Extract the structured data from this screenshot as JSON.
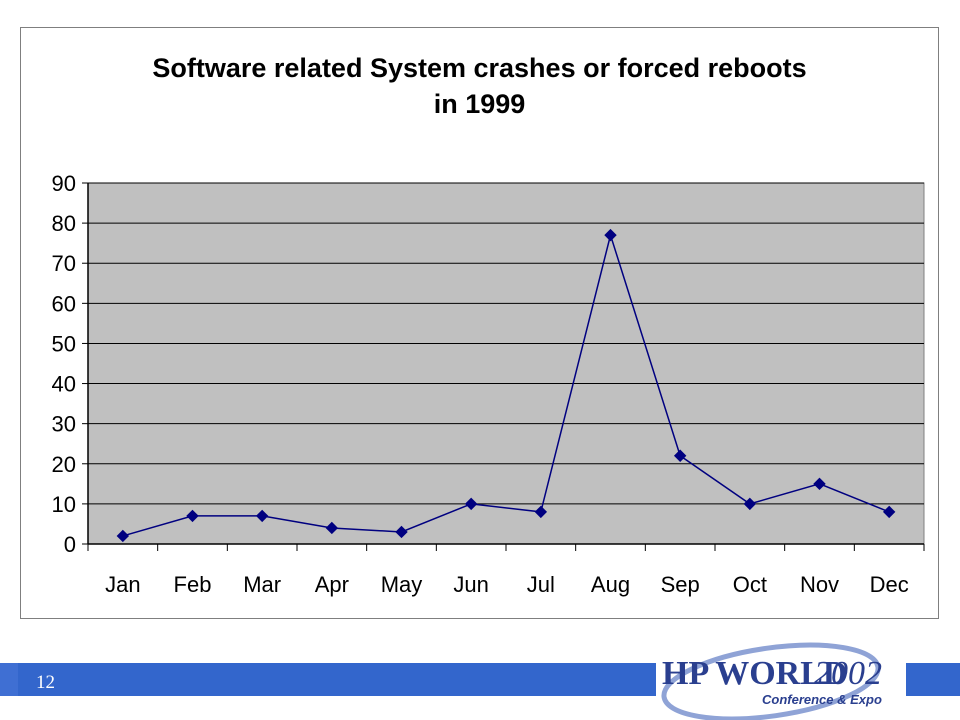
{
  "slide": {
    "number": "12",
    "logo": {
      "brand": "HP WORLD",
      "year": "2002",
      "subtitle": "Conference & Expo",
      "color": "#2a3f8f"
    }
  },
  "colors": {
    "plot_background": "#c0c0c0",
    "series_line": "#000080",
    "gridline": "#000000",
    "footer_bar": "#3366cc"
  },
  "chart_data": {
    "type": "line",
    "title": "Software related System crashes or forced reboots in 1999",
    "title_lines": [
      "Software related System crashes or forced reboots",
      "in 1999"
    ],
    "xlabel": "",
    "ylabel": "",
    "categories": [
      "Jan",
      "Feb",
      "Mar",
      "Apr",
      "May",
      "Jun",
      "Jul",
      "Aug",
      "Sep",
      "Oct",
      "Nov",
      "Dec"
    ],
    "values": [
      2,
      7,
      7,
      4,
      3,
      10,
      8,
      77,
      22,
      10,
      15,
      8
    ],
    "ylim": [
      0,
      90
    ],
    "yticks": [
      0,
      10,
      20,
      30,
      40,
      50,
      60,
      70,
      80,
      90
    ],
    "grid": "horizontal",
    "legend": "none",
    "marker": "diamond"
  }
}
